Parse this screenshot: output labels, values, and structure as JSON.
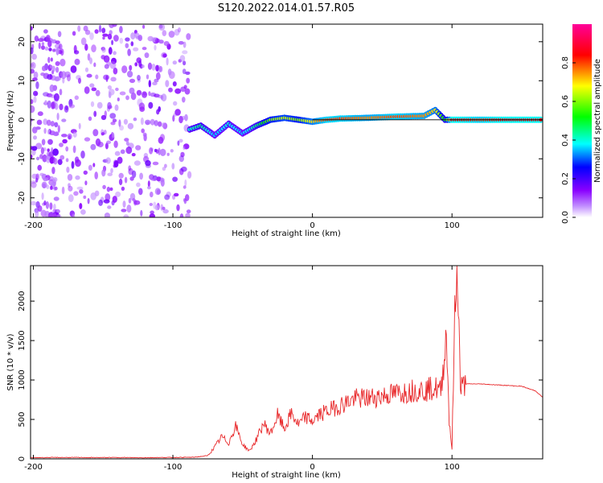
{
  "figure_title": "S120.2022.014.01.57.R05",
  "chart_data": [
    {
      "type": "heatmap",
      "title": "S120.2022.014.01.57.R05",
      "xlabel": "Height of straight line (km)",
      "ylabel": "Frequency (Hz)",
      "xlim": [
        -202,
        165
      ],
      "ylim": [
        -25,
        24.5
      ],
      "x_ticks": [
        -200,
        -100,
        0,
        100
      ],
      "y_ticks": [
        20,
        10,
        0,
        -10,
        -20
      ],
      "colorbar": {
        "label": "Normalized spectral amplitude",
        "range": [
          0,
          1
        ],
        "ticks": [
          0.0,
          0.2,
          0.4,
          0.6,
          0.8
        ],
        "colors": [
          "#ffffff",
          "#8a00ff",
          "#0000ff",
          "#00ffff",
          "#00ff00",
          "#ffff00",
          "#ff0000",
          "#ff00aa"
        ]
      },
      "noise_region_x": [
        -202,
        -88
      ],
      "ridge": [
        {
          "x": -88,
          "f": -2.5,
          "amp": 0.4
        },
        {
          "x": -80,
          "f": -1.5,
          "amp": 0.45
        },
        {
          "x": -70,
          "f": -4.0,
          "amp": 0.35
        },
        {
          "x": -60,
          "f": -1.0,
          "amp": 0.4
        },
        {
          "x": -50,
          "f": -3.5,
          "amp": 0.35
        },
        {
          "x": -40,
          "f": -1.5,
          "amp": 0.45
        },
        {
          "x": -30,
          "f": 0.0,
          "amp": 0.6
        },
        {
          "x": -20,
          "f": 0.5,
          "amp": 0.65
        },
        {
          "x": -10,
          "f": 0.0,
          "amp": 0.6
        },
        {
          "x": 0,
          "f": -0.5,
          "amp": 0.7
        },
        {
          "x": 10,
          "f": 0.0,
          "amp": 0.8
        },
        {
          "x": 20,
          "f": 0.3,
          "amp": 0.8
        },
        {
          "x": 40,
          "f": 0.5,
          "amp": 0.75
        },
        {
          "x": 60,
          "f": 0.8,
          "amp": 0.8
        },
        {
          "x": 80,
          "f": 1.0,
          "amp": 0.75
        },
        {
          "x": 88,
          "f": 2.5,
          "amp": 0.7
        },
        {
          "x": 95,
          "f": 0.0,
          "amp": 0.5
        },
        {
          "x": 100,
          "f": 0.0,
          "amp": 0.85
        },
        {
          "x": 120,
          "f": 0.0,
          "amp": 0.8
        },
        {
          "x": 140,
          "f": 0.0,
          "amp": 0.85
        },
        {
          "x": 165,
          "f": 0.0,
          "amp": 0.85
        }
      ]
    },
    {
      "type": "line",
      "xlabel": "Height of straight line (km)",
      "ylabel": "SNR (10 * v/v)",
      "xlim": [
        -202,
        165
      ],
      "ylim": [
        0,
        2450
      ],
      "x_ticks": [
        -200,
        -100,
        0,
        100
      ],
      "y_ticks": [
        0,
        500,
        1000,
        1500,
        2000
      ],
      "series_color": "#e8282a",
      "series": [
        {
          "x": [
            -202,
            -180,
            -160,
            -140,
            -120,
            -100,
            -85,
            -75,
            -70,
            -65,
            -60,
            -55,
            -50,
            -45,
            -40,
            -35,
            -30,
            -25,
            -20,
            -15,
            -10,
            -5,
            0,
            5,
            10,
            15,
            20,
            25,
            30,
            40,
            50,
            60,
            70,
            75,
            80,
            85,
            88,
            90,
            92,
            94,
            96,
            98,
            100,
            102,
            104,
            106,
            110,
            120,
            130,
            140,
            150,
            160,
            165
          ],
          "values": [
            15,
            18,
            16,
            17,
            15,
            18,
            20,
            40,
            150,
            280,
            200,
            420,
            180,
            100,
            250,
            450,
            320,
            550,
            380,
            580,
            430,
            530,
            480,
            560,
            600,
            640,
            680,
            720,
            760,
            770,
            800,
            830,
            860,
            880,
            870,
            890,
            900,
            880,
            850,
            1200,
            1600,
            500,
            120,
            1800,
            2450,
            900,
            950,
            950,
            940,
            930,
            920,
            860,
            780
          ]
        }
      ]
    }
  ]
}
